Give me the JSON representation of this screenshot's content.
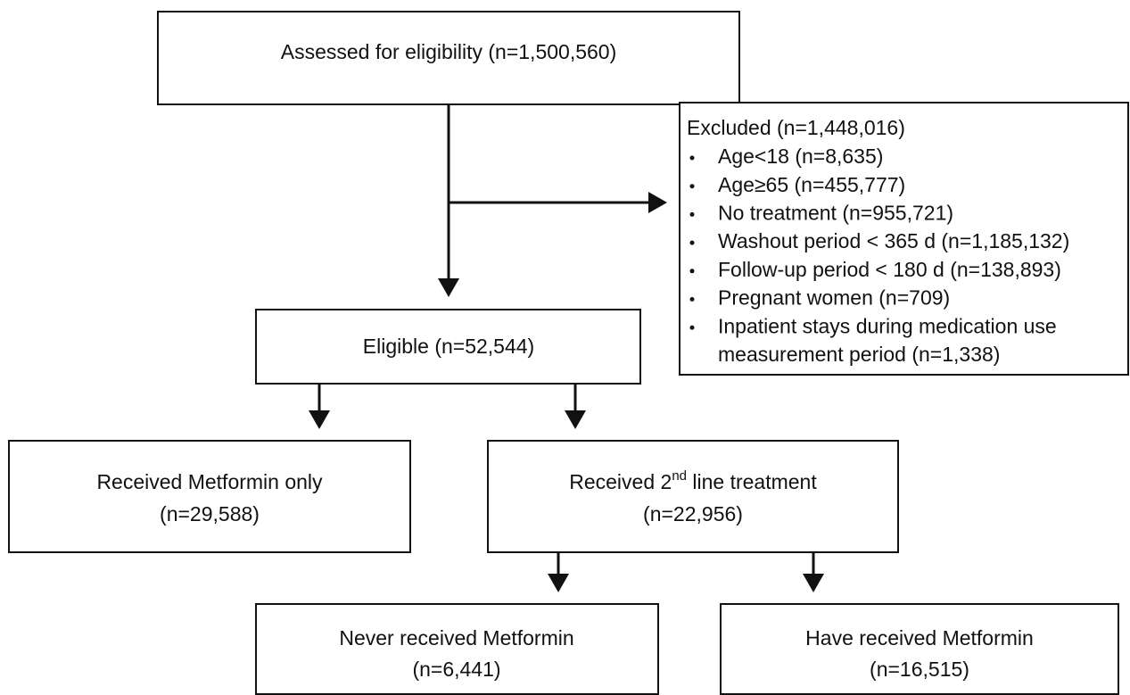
{
  "nodes": [
    {
      "lines": [
        "Assessed for eligibility (n=1,500,560)"
      ]
    },
    {
      "lines": [
        "Eligible (n=52,544)"
      ]
    },
    {
      "lines": [
        "Received Metformin only",
        "(n=29,588)"
      ]
    },
    {
      "lines": [
        [
          "Received 2",
          "nd",
          " line treatment"
        ],
        "(n=22,956)"
      ]
    },
    {
      "lines": [
        "Never received Metformin",
        "(n=6,441)"
      ]
    },
    {
      "lines": [
        "Have received Metformin",
        "(n=16,515)"
      ]
    }
  ],
  "excluded": {
    "title": "Excluded (n=1,448,016)",
    "items": [
      [
        "Age<18 (n=8,635)"
      ],
      [
        "Age≥65 (n=455,777)"
      ],
      [
        "No treatment (n=955,721)"
      ],
      [
        "Washout period < 365 d (n=1,185,132)"
      ],
      [
        "Follow-up period < 180 d (n=138,893)"
      ],
      [
        "Pregnant women (n=709)"
      ],
      [
        "Inpatient stays during medication use",
        "measurement period (n=1,338)"
      ]
    ]
  }
}
